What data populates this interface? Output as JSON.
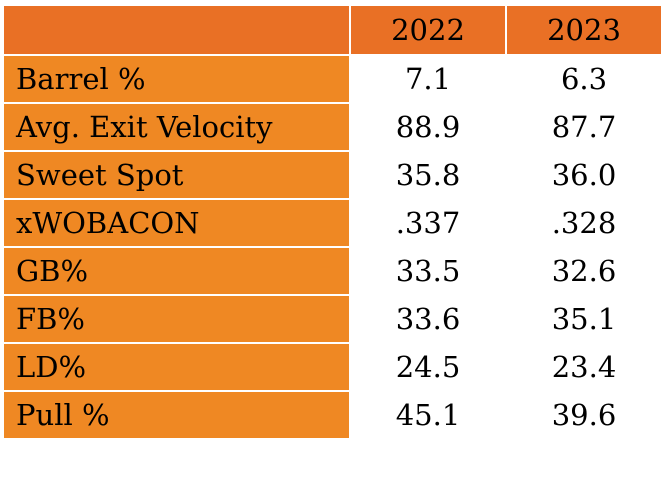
{
  "table": {
    "columns": [
      "",
      "2022",
      "2023"
    ],
    "rows": [
      {
        "label": "Barrel %",
        "values": [
          "7.1",
          "6.3"
        ]
      },
      {
        "label": "Avg. Exit Velocity",
        "values": [
          "88.9",
          "87.7"
        ]
      },
      {
        "label": "Sweet Spot",
        "values": [
          "35.8",
          "36.0"
        ]
      },
      {
        "label": "xWOBACON",
        "values": [
          ".337",
          ".328"
        ]
      },
      {
        "label": "GB%",
        "values": [
          "33.5",
          "32.6"
        ]
      },
      {
        "label": "FB%",
        "values": [
          "33.6",
          "35.1"
        ]
      },
      {
        "label": "LD%",
        "values": [
          "24.5",
          "23.4"
        ]
      },
      {
        "label": "Pull %",
        "values": [
          "45.1",
          "39.6"
        ]
      }
    ]
  },
  "colors": {
    "header_bg": "#e97025",
    "label_bg": "#ef8823",
    "value_bg": "#ffffff",
    "grid_line": "#ffffff"
  }
}
